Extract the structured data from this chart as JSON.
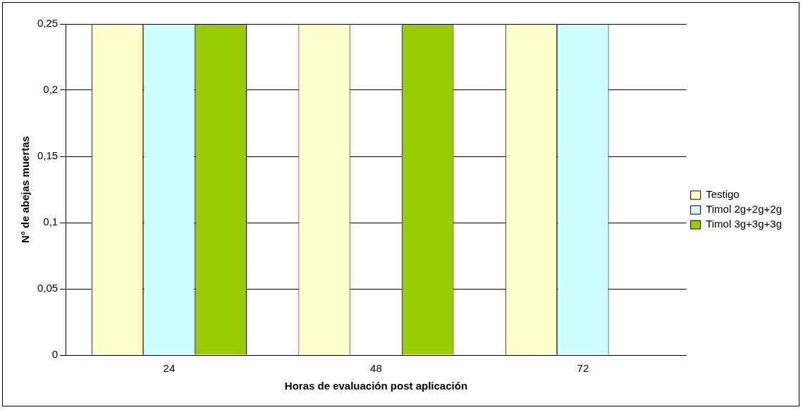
{
  "chart_data": {
    "type": "bar",
    "xlabel": "Horas de evaluación post aplicación",
    "ylabel": "N° de abejas muertas",
    "categories": [
      "24",
      "48",
      "72"
    ],
    "series": [
      {
        "name": "Testigo",
        "color": "#ffffcc",
        "values": [
          0.25,
          0.25,
          0.25
        ]
      },
      {
        "name": "Timol 2g+2g+2g",
        "color": "#ccffff",
        "values": [
          0.25,
          0,
          0.25
        ]
      },
      {
        "name": "Timol 3g+3g+3g",
        "color": "#99cc00",
        "values": [
          0.25,
          0.25,
          0
        ]
      }
    ],
    "ylim": [
      0,
      0.25
    ],
    "yticks": [
      0,
      {
        "value": 0.05,
        "label": "0,05"
      },
      {
        "value": 0.1,
        "label": "0,1"
      },
      {
        "value": 0.15,
        "label": "0,15"
      },
      {
        "value": 0.2,
        "label": "0,2"
      },
      {
        "value": 0.25,
        "label": "0,25"
      }
    ],
    "grid": "y",
    "legend": "right"
  }
}
